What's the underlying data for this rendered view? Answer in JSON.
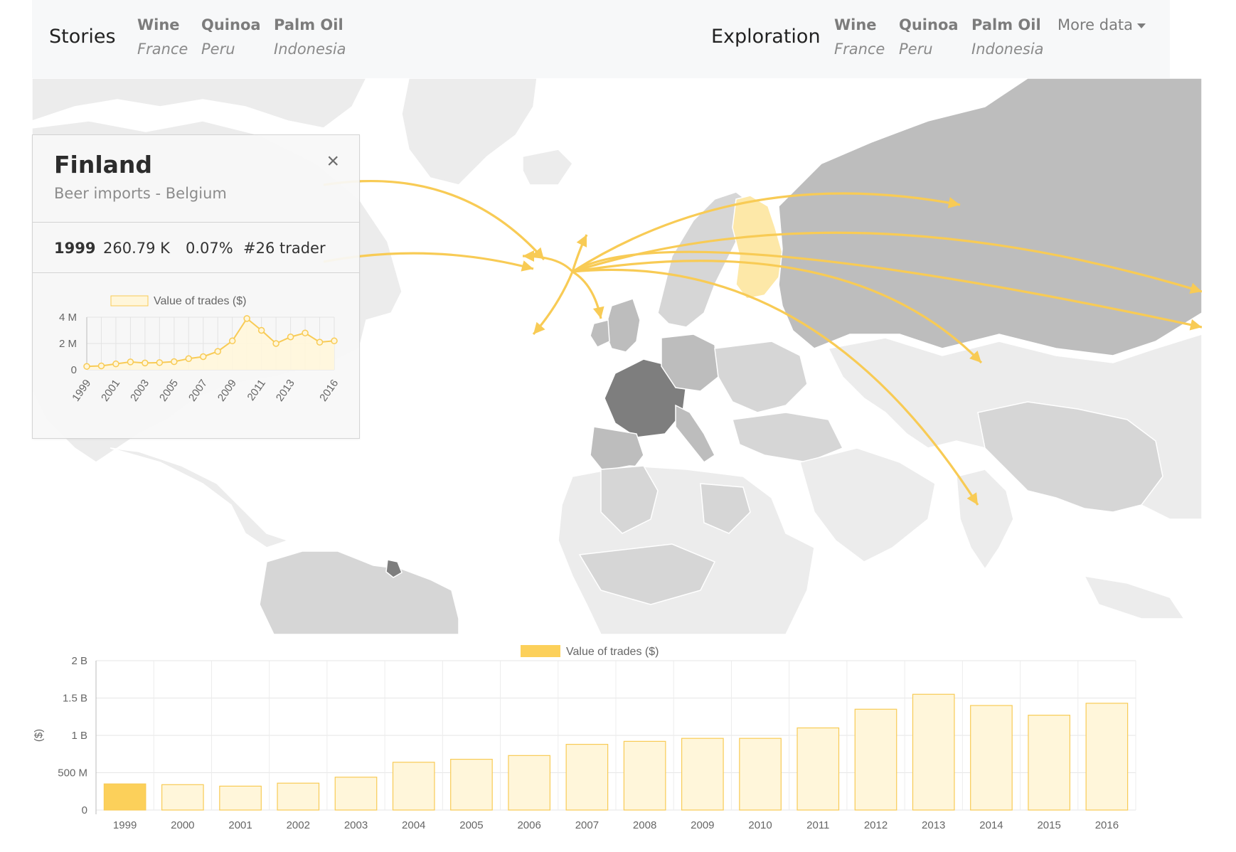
{
  "navbar": {
    "stories_label": "Stories",
    "exploration_label": "Exploration",
    "stories": [
      {
        "title": "Wine",
        "country": "France"
      },
      {
        "title": "Quinoa",
        "country": "Peru"
      },
      {
        "title": "Palm Oil",
        "country": "Indonesia"
      }
    ],
    "exploration": [
      {
        "title": "Wine",
        "country": "France"
      },
      {
        "title": "Quinoa",
        "country": "Peru"
      },
      {
        "title": "Palm Oil",
        "country": "Indonesia"
      }
    ],
    "more_label": "More data"
  },
  "panel": {
    "country": "Finland",
    "subtitle": "Beer imports - Belgium",
    "close_glyph": "×",
    "stats": {
      "year": "1999",
      "value": "260.79 K",
      "share": "0.07%",
      "rank": "#26 trader"
    }
  },
  "colors": {
    "accent": "#f8cb55",
    "accent_light": "#fff6da",
    "selected_bar": "#fcd05a",
    "selected_country": "#fde8a8"
  },
  "chart_data": [
    {
      "type": "line",
      "legend": "Value of trades ($)",
      "x": [
        1999,
        2000,
        2001,
        2002,
        2003,
        2004,
        2005,
        2006,
        2007,
        2008,
        2009,
        2010,
        2011,
        2012,
        2013,
        2014,
        2015,
        2016
      ],
      "x_tick_labels": [
        "1999",
        "2001",
        "2003",
        "2005",
        "2007",
        "2009",
        "2011",
        "2013",
        "2016"
      ],
      "values": [
        0.26,
        0.3,
        0.45,
        0.6,
        0.52,
        0.55,
        0.62,
        0.85,
        1.0,
        1.4,
        2.2,
        3.9,
        3.0,
        2.0,
        2.5,
        2.8,
        2.1,
        2.2
      ],
      "value_unit": "M",
      "y_ticks": [
        "0",
        "2 M",
        "4 M"
      ],
      "ylim": [
        0,
        4
      ]
    },
    {
      "type": "bar",
      "legend": "Value of trades ($)",
      "ylabel": "($)",
      "categories": [
        "1999",
        "2000",
        "2001",
        "2002",
        "2003",
        "2004",
        "2005",
        "2006",
        "2007",
        "2008",
        "2009",
        "2010",
        "2011",
        "2012",
        "2013",
        "2014",
        "2015",
        "2016"
      ],
      "values": [
        0.35,
        0.34,
        0.32,
        0.36,
        0.44,
        0.64,
        0.68,
        0.73,
        0.88,
        0.92,
        0.96,
        0.96,
        1.1,
        1.35,
        1.55,
        1.4,
        1.27,
        1.43
      ],
      "value_unit": "B",
      "selected_index": 0,
      "y_ticks": [
        "0",
        "500 M",
        "1 B",
        "1.5 B",
        "2 B"
      ],
      "ylim": [
        0,
        2
      ]
    }
  ]
}
